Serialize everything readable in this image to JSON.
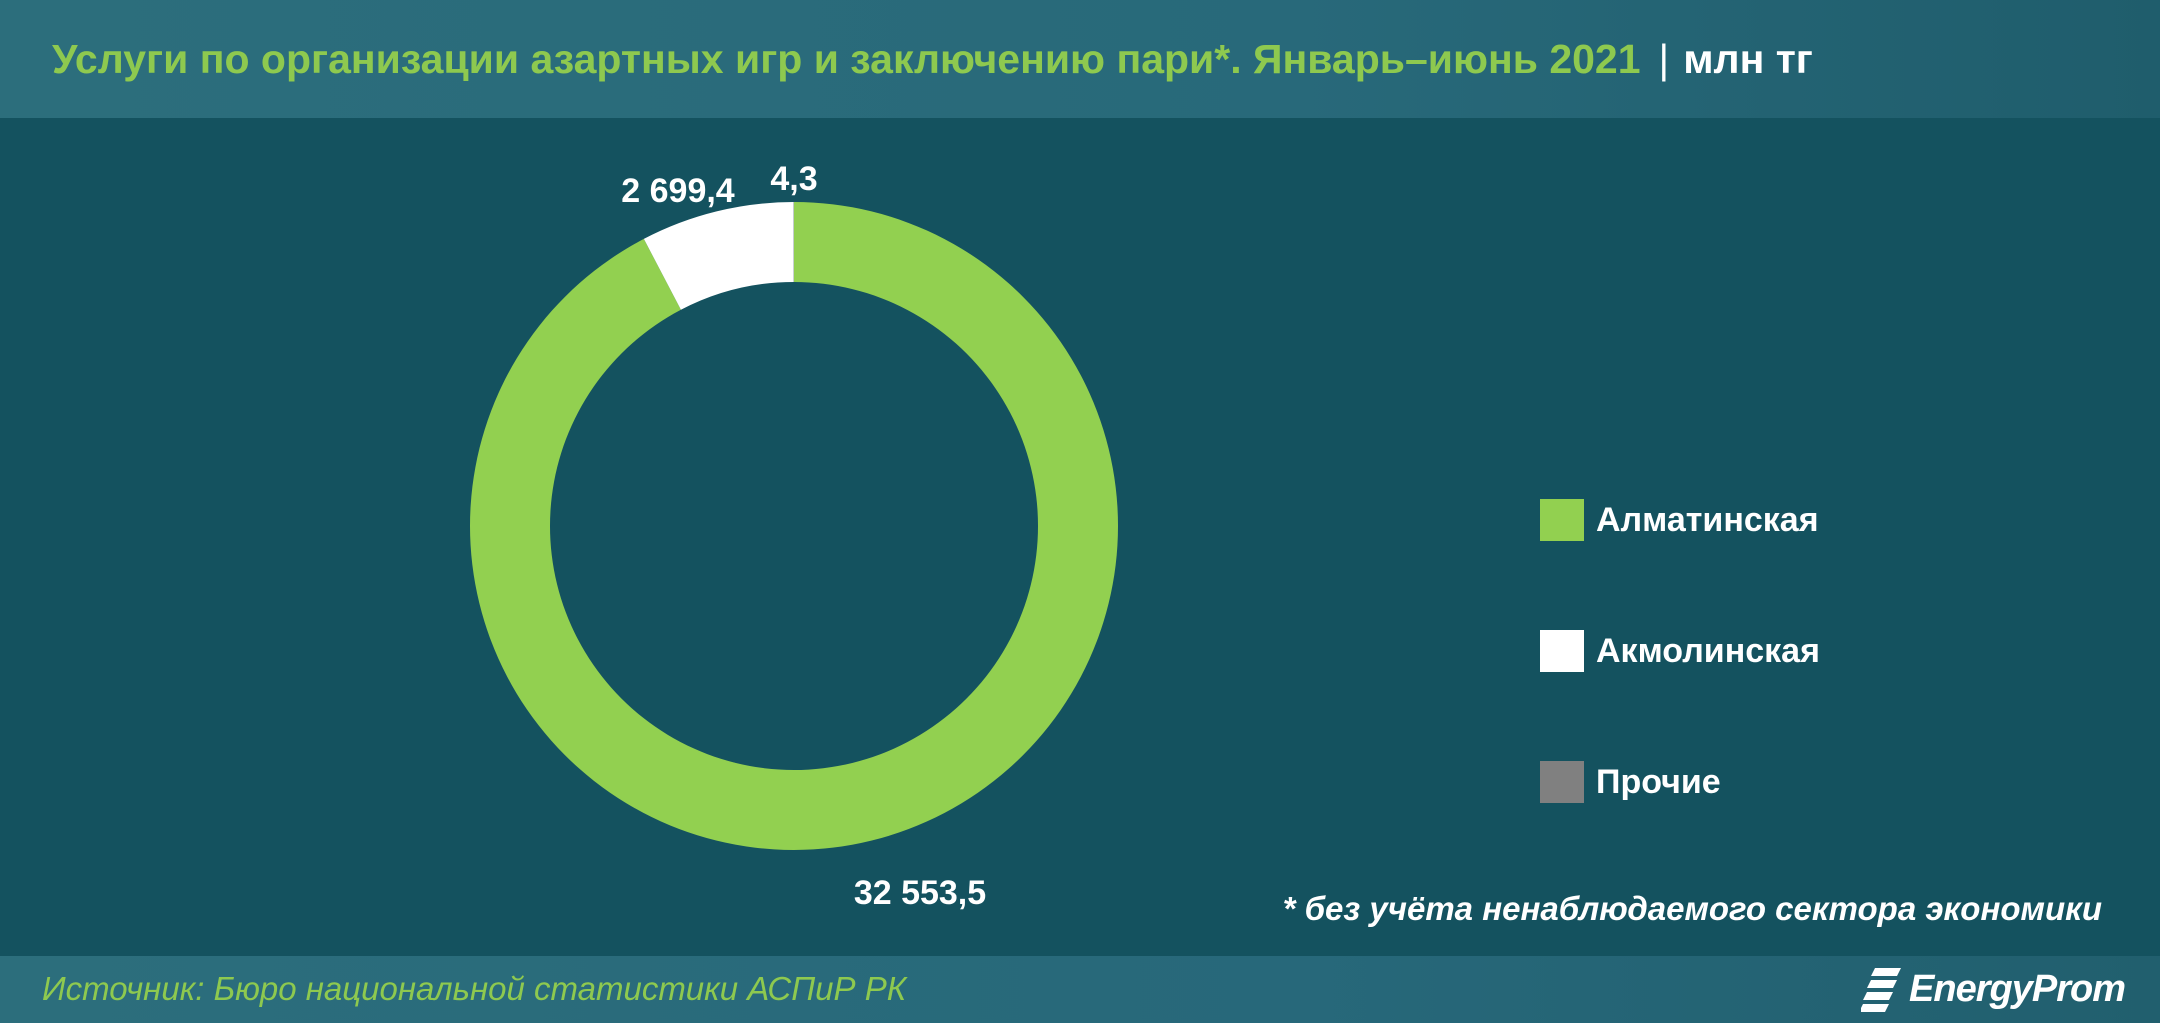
{
  "header": {
    "title": "Услуги по организации азартных игр и заключению пари*. Январь–июнь 2021",
    "separator": "|",
    "unit": "млн тг"
  },
  "chart_data": {
    "type": "pie",
    "variant": "donut",
    "title": "Услуги по организации азартных игр и заключению пари*. Январь–июнь 2021",
    "unit": "млн тг",
    "legend_position": "right",
    "series": [
      {
        "name": "Алматинская",
        "value": 32553.5,
        "label": "32 553,5",
        "color": "#92d050"
      },
      {
        "name": "Акмолинская",
        "value": 2699.4,
        "label": "2 699,4",
        "color": "#ffffff"
      },
      {
        "name": "Прочие",
        "value": 4.3,
        "label": "4,3",
        "color": "#808080"
      }
    ]
  },
  "note": "* без учёта ненаблюдаемого сектора экономики",
  "footer": {
    "source": "Источник: Бюро национальной статистики АСПиР РК",
    "logo": "EnergyProm"
  }
}
